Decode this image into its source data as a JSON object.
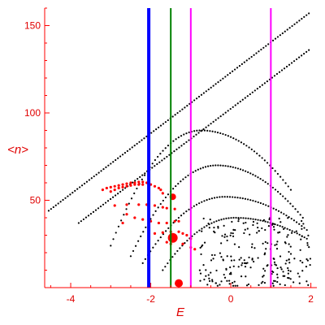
{
  "chart_data": {
    "type": "scatter",
    "xlabel": "E",
    "ylabel": "<n>",
    "xlim": [
      -4.65,
      2.15
    ],
    "ylim": [
      0,
      160
    ],
    "xticks": [
      -4,
      -2,
      0,
      2
    ],
    "yticks": [
      50,
      100,
      150
    ],
    "axis_color": "#ff0000",
    "grid": false,
    "vertical_lines": [
      {
        "x": -2.05,
        "color": "#0000ff"
      },
      {
        "x": -1.5,
        "color": "#008000"
      },
      {
        "x": -1.0,
        "color": "#ff00ff"
      },
      {
        "x": 1.0,
        "color": "#ff00ff"
      }
    ],
    "series": [
      {
        "color": "#000000",
        "marker_radius": 1.1,
        "bands": [
          {
            "x0": -4.55,
            "x1": 1.95,
            "y0": 44,
            "y1": 157,
            "n": 110
          },
          {
            "x0": -3.8,
            "x1": 1.95,
            "y0": 37,
            "y1": 136,
            "n": 95
          },
          {
            "x0": -3.0,
            "x1": 1.5,
            "y0": 24,
            "y1": 56,
            "peak": 90,
            "n": 70
          },
          {
            "x0": -2.5,
            "x1": 1.8,
            "y0": 18,
            "y1": 40,
            "peak": 70,
            "n": 70
          },
          {
            "x0": -2.2,
            "x1": 1.9,
            "y0": 14,
            "y1": 33,
            "peak": 52,
            "n": 65
          },
          {
            "x0": -1.7,
            "x1": 1.9,
            "y0": 10,
            "y1": 28,
            "peak": 40,
            "n": 60
          }
        ],
        "cloud": {
          "x0": -0.8,
          "x1": 2.0,
          "y0": 1,
          "y1": 40,
          "n": 230
        }
      },
      {
        "color": "#ff0000",
        "marker_radius": 1.6,
        "points": [
          [
            -3.2,
            56
          ],
          [
            -3.1,
            57
          ],
          [
            -3.0,
            57.5
          ],
          [
            -2.9,
            58
          ],
          [
            -2.8,
            58.5
          ],
          [
            -2.7,
            59
          ],
          [
            -2.6,
            59.5
          ],
          [
            -2.5,
            60
          ],
          [
            -2.4,
            60
          ],
          [
            -2.3,
            60.5
          ],
          [
            -2.2,
            60.5
          ],
          [
            -2.1,
            60
          ],
          [
            -2.0,
            59
          ],
          [
            -1.9,
            58
          ],
          [
            -1.8,
            57
          ],
          [
            -1.75,
            56
          ],
          [
            -1.7,
            54
          ],
          [
            -3.0,
            55
          ],
          [
            -2.9,
            56
          ],
          [
            -2.8,
            57
          ],
          [
            -2.7,
            57.5
          ],
          [
            -2.6,
            58
          ],
          [
            -2.5,
            58.5
          ],
          [
            -2.4,
            59
          ],
          [
            -2.3,
            59
          ],
          [
            -2.2,
            59
          ],
          [
            -2.9,
            47
          ],
          [
            -2.6,
            47.5
          ],
          [
            -2.3,
            47.5
          ],
          [
            -2.1,
            47.5
          ],
          [
            -1.9,
            47
          ],
          [
            -1.7,
            46
          ],
          [
            -1.6,
            45.5
          ],
          [
            -1.4,
            45
          ],
          [
            -2.6,
            42
          ],
          [
            -2.4,
            40
          ],
          [
            -2.7,
            37
          ],
          [
            -2.2,
            39
          ],
          [
            -2.0,
            38
          ],
          [
            -1.8,
            37
          ],
          [
            -1.6,
            37
          ],
          [
            -1.4,
            38
          ],
          [
            -1.3,
            38
          ],
          [
            -1.9,
            31
          ],
          [
            -1.7,
            31.5
          ],
          [
            -1.5,
            32
          ],
          [
            -1.3,
            32
          ],
          [
            -1.2,
            31
          ],
          [
            -1.1,
            30
          ],
          [
            -1.0,
            28
          ],
          [
            -1.6,
            26
          ],
          [
            -1.5,
            25
          ],
          [
            -1.2,
            25
          ],
          [
            -1.0,
            23
          ],
          [
            -0.9,
            22
          ]
        ],
        "large_points": [
          {
            "x": -1.45,
            "y": 52,
            "r": 4
          },
          {
            "x": -1.45,
            "y": 28.5,
            "r": 6
          },
          {
            "x": -1.3,
            "y": 2.5,
            "r": 5
          }
        ]
      }
    ]
  }
}
